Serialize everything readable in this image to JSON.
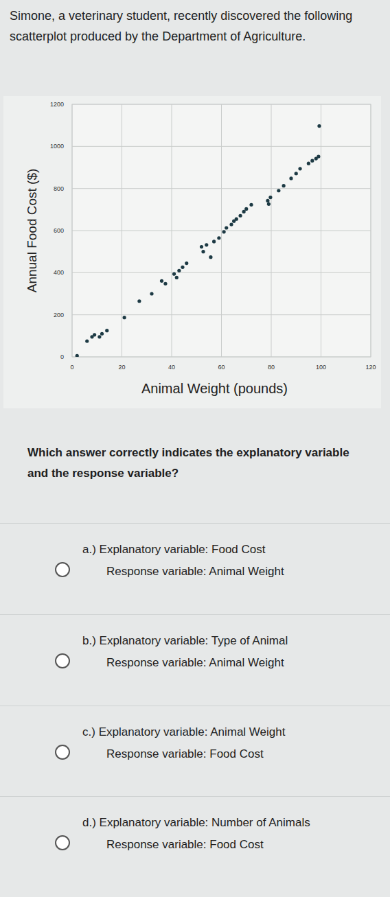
{
  "intro": "Simone, a veterinary student, recently discovered the following scatterplot produced by the Department of Agriculture.",
  "chart_data": {
    "type": "scatter",
    "x_label": "Animal Weight (pounds)",
    "y_label": "Annual Food Cost ($)",
    "x": [
      2,
      6,
      8,
      9,
      11,
      12,
      14,
      21,
      27,
      32,
      36,
      37.5,
      41,
      42,
      43,
      44.4,
      46,
      52,
      52.7,
      54,
      55.7,
      57,
      59,
      61,
      62,
      64,
      65,
      66,
      67.6,
      69,
      70,
      72,
      78.6,
      79,
      79.7,
      83,
      85,
      88,
      90,
      91.6,
      95,
      96.5,
      98,
      99,
      99.3
    ],
    "values": [
      5,
      75,
      95,
      105,
      95,
      110,
      125,
      187,
      265,
      300,
      361,
      348,
      394,
      377,
      410,
      426,
      445,
      523,
      500,
      532,
      474,
      548,
      565,
      594,
      613,
      629,
      645,
      655,
      671,
      690,
      703,
      723,
      742,
      726,
      758,
      790,
      813,
      848,
      871,
      894,
      919,
      932,
      942,
      952,
      1097
    ],
    "color": "#1d3a44",
    "marker": "circle",
    "xlim": [
      0,
      120
    ],
    "xticks": [
      0,
      20,
      40,
      60,
      80,
      100,
      120
    ],
    "ylim": [
      0,
      1200
    ],
    "yticks": [
      0,
      200,
      400,
      600,
      800,
      1000,
      1200
    ],
    "grid": true
  },
  "question": "Which answer correctly indicates the explanatory variable and the response variable?",
  "options": [
    {
      "letter": "a.)",
      "explanatory": "Explanatory variable: Food Cost",
      "response": "Response variable: Animal Weight"
    },
    {
      "letter": "b.)",
      "explanatory": "Explanatory variable: Type of Animal",
      "response": "Response variable: Animal Weight"
    },
    {
      "letter": "c.)",
      "explanatory": "Explanatory variable: Animal Weight",
      "response": "Response variable: Food Cost"
    },
    {
      "letter": "d.)",
      "explanatory": "Explanatory variable: Number of Animals",
      "response": "Response variable: Food Cost"
    }
  ]
}
